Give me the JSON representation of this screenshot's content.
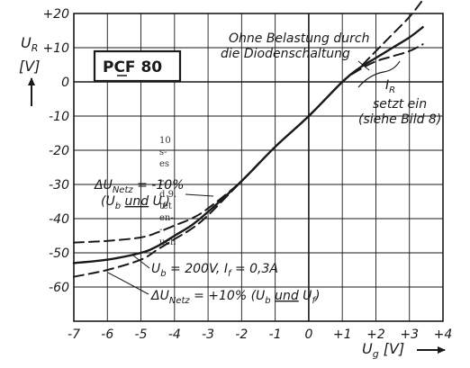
{
  "left_text_fragments": [
    "10",
    "s-",
    "es",
    "r-",
    "d 9.",
    "tet",
    "en-",
    "-",
    "uch"
  ],
  "chart_data": {
    "type": "line",
    "xlim": [
      -7,
      4
    ],
    "ylim": [
      -70,
      20
    ],
    "x_ticks": [
      -7,
      -6,
      -5,
      -4,
      -3,
      -2,
      -1,
      0,
      1,
      2,
      3,
      4
    ],
    "x_tick_labels": [
      "-7",
      "-6",
      "-5",
      "-4",
      "-3",
      "-2",
      "-1",
      "0",
      "+1",
      "+2",
      "+3",
      "+4"
    ],
    "y_ticks": [
      20,
      10,
      0,
      -10,
      -20,
      -30,
      -40,
      -50,
      -60
    ],
    "y_tick_labels": [
      "+20",
      "+10",
      "0",
      "-10",
      "-20",
      "-30",
      "-40",
      "-50",
      "-60"
    ],
    "grid": true,
    "xlabel": "Ug [V]",
    "ylabel": "UR [V]",
    "tube_label": "PCF 80",
    "series": [
      {
        "style": "solid",
        "x": [
          -7,
          -6,
          -5,
          -4.5,
          -4,
          -3.5,
          -3,
          -2,
          -1,
          0,
          1,
          1.5,
          2,
          2.5,
          3,
          3.4
        ],
        "y": [
          -53,
          -52,
          -50,
          -48,
          -45,
          -42,
          -38,
          -29,
          -19,
          -10,
          0,
          4,
          7,
          10,
          13,
          16
        ]
      },
      {
        "style": "dashed",
        "x": [
          -7,
          -6,
          -5,
          -4.5,
          -4,
          -3.5,
          -3,
          -2,
          -1,
          0,
          1,
          1.5,
          2,
          2.5,
          3,
          3.4
        ],
        "y": [
          -47,
          -46.5,
          -45.5,
          -44,
          -42,
          -40,
          -37,
          -29,
          -19,
          -10,
          0,
          4,
          9,
          14,
          19,
          24
        ]
      },
      {
        "style": "dashed",
        "x": [
          -7,
          -6,
          -5,
          -4.5,
          -4,
          -3.5,
          -3,
          -2,
          -1,
          0,
          1,
          1.5,
          2,
          2.5,
          3,
          3.4
        ],
        "y": [
          -57,
          -55,
          -52,
          -49,
          -46,
          -43,
          -39,
          -29,
          -19,
          -10,
          0,
          3.5,
          6,
          7.5,
          9,
          11
        ]
      }
    ],
    "annotations": {
      "ohne_line1": "Ohne Belastung durch",
      "ohne_line2": "die Diodenschaltung",
      "ir": "IR",
      "setzt": "setzt ein",
      "siehe": "(siehe Bild 8)",
      "netz_minus_line1": "ΔUNetz = -10%",
      "netz_minus_line2": "(Ub und Uf)",
      "ub": "Ub = 200V, If = 0,3A",
      "netz_plus": "ΔUNetz = +10% (Ub und Uf)"
    }
  }
}
